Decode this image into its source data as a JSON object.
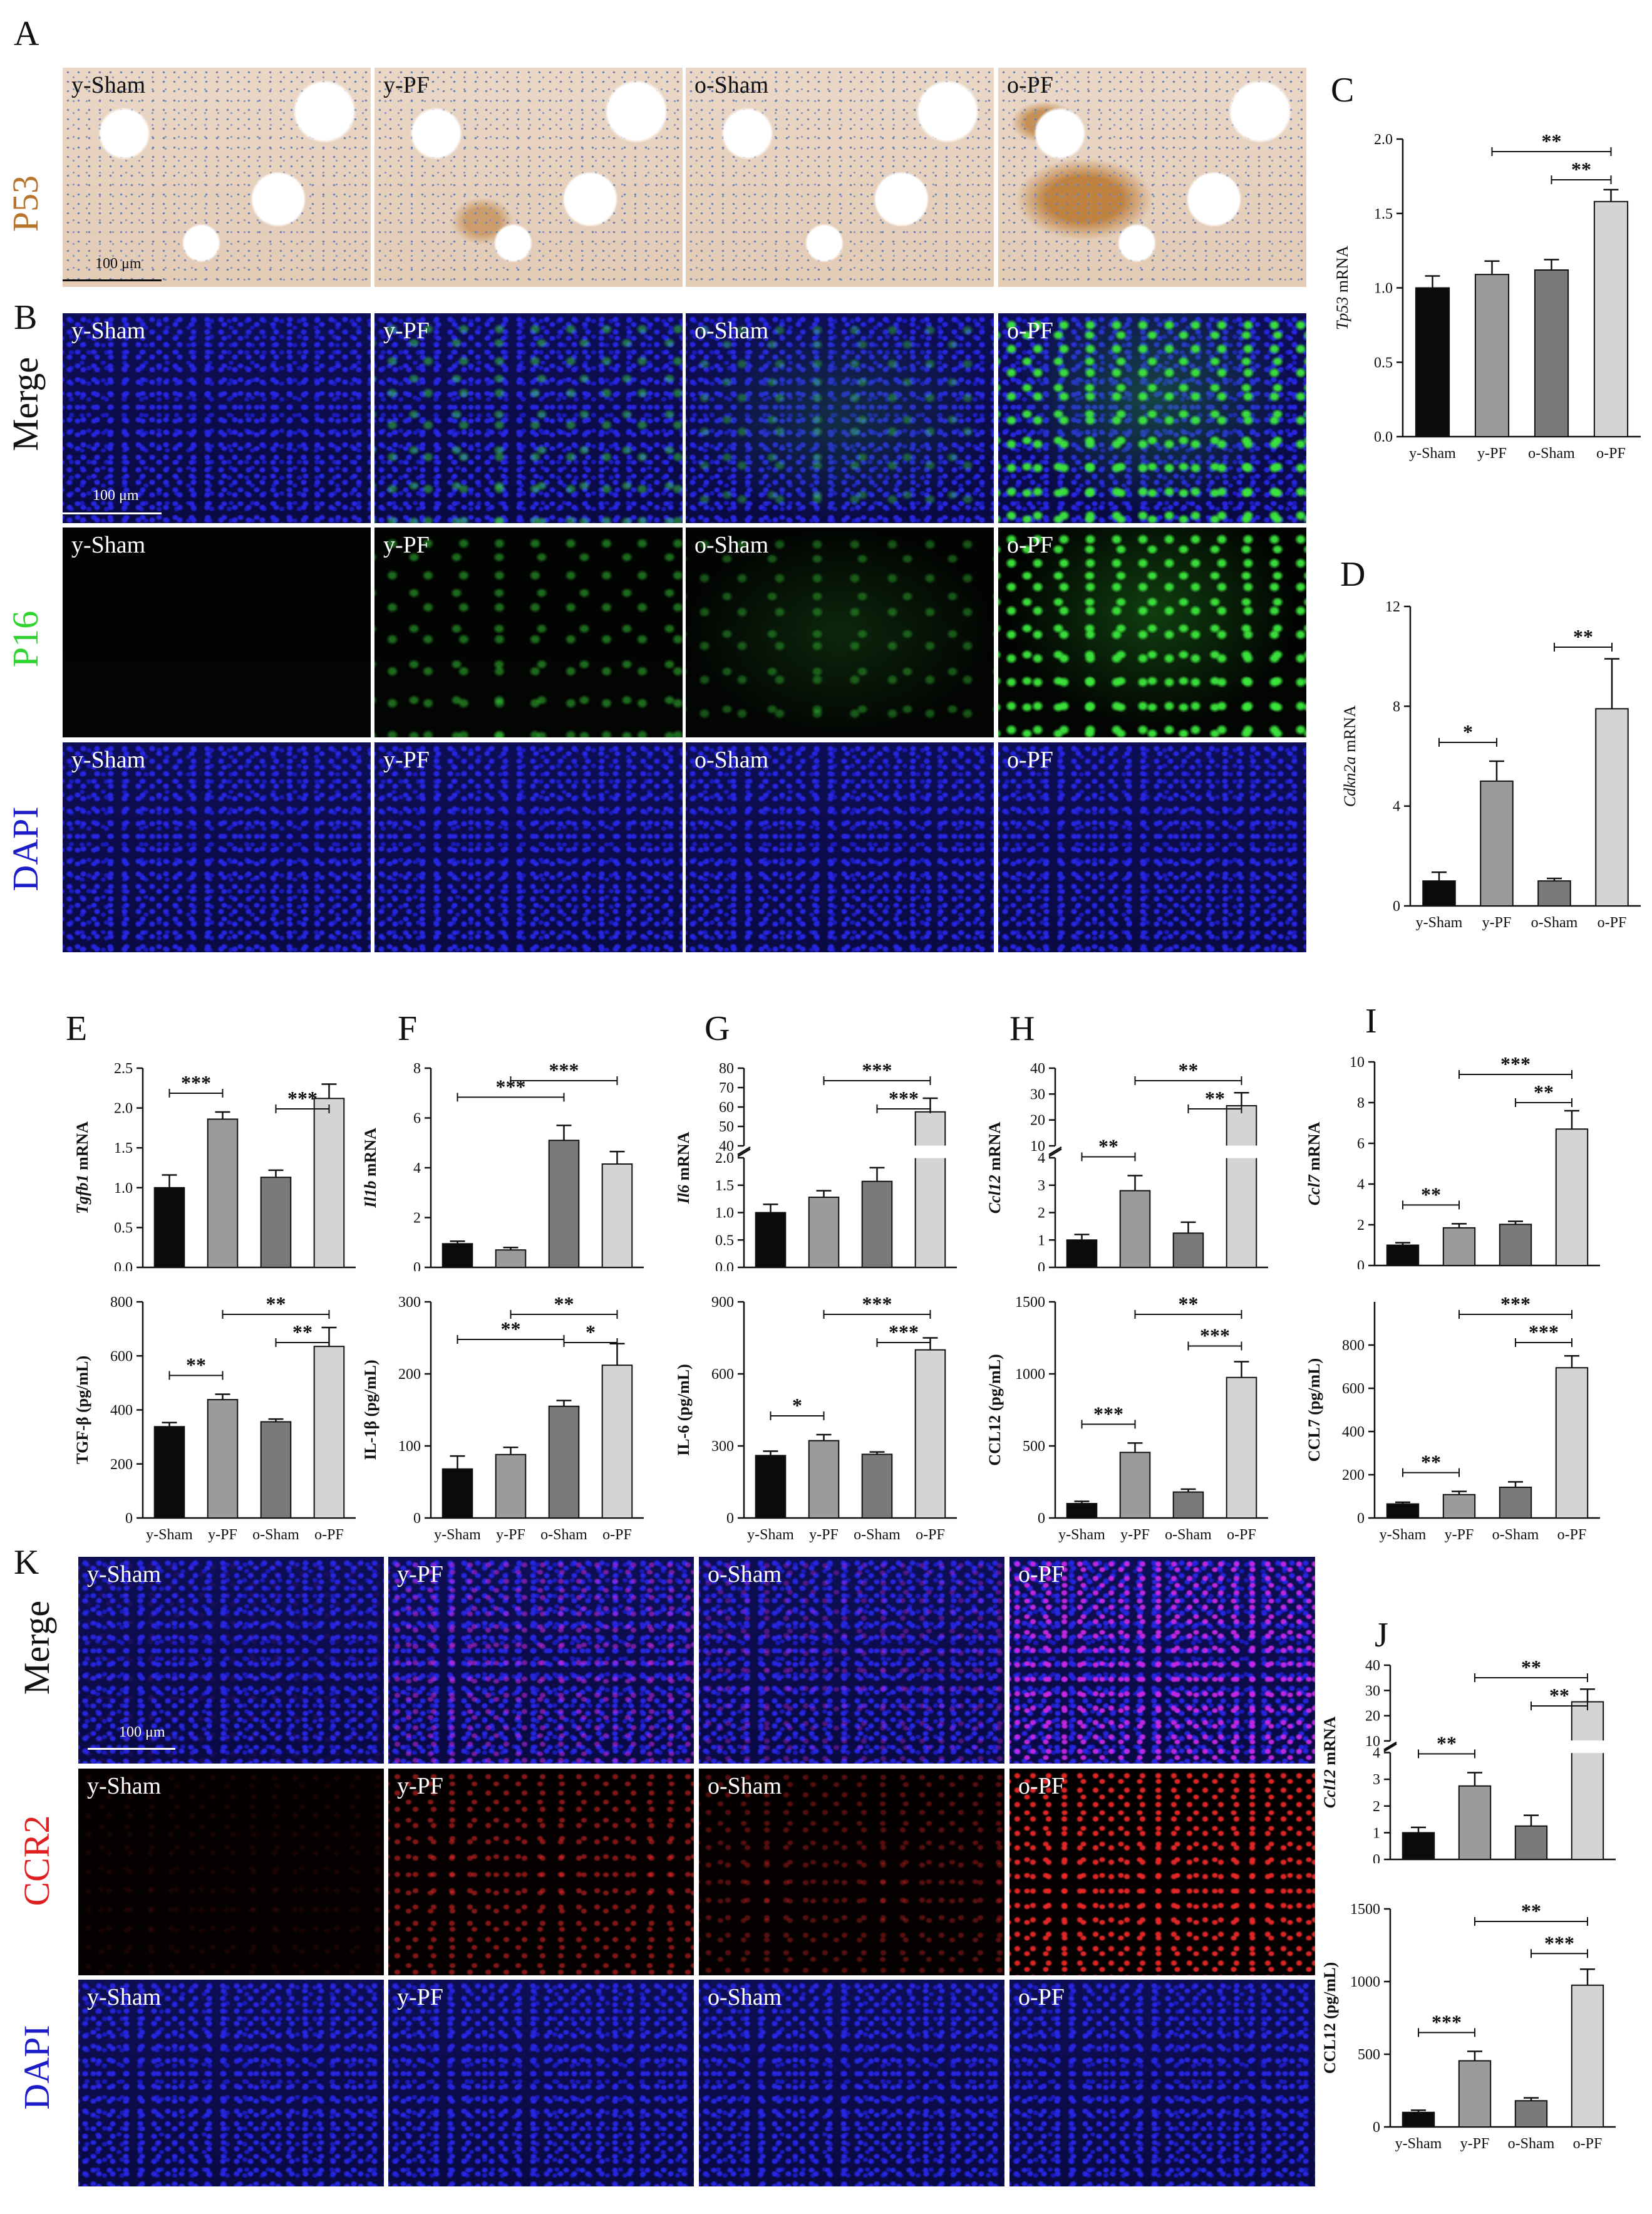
{
  "panels": {
    "A": "A",
    "B": "B",
    "C": "C",
    "D": "D",
    "E": "E",
    "F": "F",
    "G": "G",
    "H": "H",
    "I": "I",
    "J": "J",
    "K": "K"
  },
  "group_labels": [
    "y-Sham",
    "y-PF",
    "o-Sham",
    "o-PF"
  ],
  "stains": {
    "p53": "P53",
    "merge": "Merge",
    "p16": "P16",
    "dapi": "DAPI",
    "ccr2": "CCR2"
  },
  "scalebar": "100 μm",
  "colors": {
    "y_sham": "#0b0b0b",
    "y_pf": "#9b9b9b",
    "o_sham": "#7a7a7a",
    "o_pf": "#d4d4d4",
    "p16_green": "#2fd42f",
    "dapi_blue": "#1c1cc8",
    "ccr2_red": "#e02020",
    "ihc_brown": "#b8742b"
  },
  "chart_data": [
    {
      "id": "C",
      "type": "bar",
      "categories": [
        "y-Sham",
        "y-PF",
        "o-Sham",
        "o-PF"
      ],
      "values": [
        1.0,
        1.09,
        1.12,
        1.58
      ],
      "errors": [
        0.08,
        0.09,
        0.07,
        0.08
      ],
      "ylabel_it": "Tp53",
      "ylabel_rest": " mRNA",
      "ylim": [
        0,
        2.0
      ],
      "ticks": [
        0.0,
        0.5,
        1.0,
        1.5,
        2.0
      ],
      "tick_labels": [
        "0.0",
        "0.5",
        "1.0",
        "1.5",
        "2.0"
      ],
      "sig": [
        {
          "from": 1,
          "to": 3,
          "label": "**"
        },
        {
          "from": 2,
          "to": 3,
          "label": "**"
        }
      ]
    },
    {
      "id": "D",
      "type": "bar",
      "categories": [
        "y-Sham",
        "y-PF",
        "o-Sham",
        "o-PF"
      ],
      "values": [
        1.0,
        5.0,
        1.0,
        7.9
      ],
      "errors": [
        0.35,
        0.8,
        0.1,
        2.0
      ],
      "ylabel_it": "Cdkn2a",
      "ylabel_rest": " mRNA",
      "ylim": [
        0,
        12
      ],
      "ticks": [
        0,
        4,
        8,
        12
      ],
      "tick_labels": [
        "0",
        "4",
        "8",
        "12"
      ],
      "sig": [
        {
          "from": 0,
          "to": 1,
          "label": "*"
        },
        {
          "from": 2,
          "to": 3,
          "label": "**"
        }
      ]
    },
    {
      "id": "E1",
      "type": "bar",
      "categories": [
        "y-Sham",
        "y-PF",
        "o-Sham",
        "o-PF"
      ],
      "values": [
        1.0,
        1.86,
        1.13,
        2.12
      ],
      "errors": [
        0.16,
        0.09,
        0.09,
        0.18
      ],
      "ylabel_it": "Tgfb1",
      "ylabel_rest": " mRNA",
      "ylim": [
        0,
        2.5
      ],
      "ticks": [
        0.0,
        0.5,
        1.0,
        1.5,
        2.0,
        2.5
      ],
      "tick_labels": [
        "0.0",
        "0.5",
        "1.0",
        "1.5",
        "2.0",
        "2.5"
      ],
      "sig": [
        {
          "from": 0,
          "to": 1,
          "label": "***"
        },
        {
          "from": 2,
          "to": 3,
          "label": "***"
        }
      ]
    },
    {
      "id": "E2",
      "type": "bar",
      "categories": [
        "y-Sham",
        "y-PF",
        "o-Sham",
        "o-PF"
      ],
      "values": [
        338,
        438,
        356,
        635
      ],
      "errors": [
        15,
        20,
        10,
        70
      ],
      "ylabel_it": "",
      "ylabel_rest": "TGF-β (pg/mL)",
      "ylim": [
        0,
        800
      ],
      "ticks": [
        0,
        200,
        400,
        600,
        800
      ],
      "tick_labels": [
        "0",
        "200",
        "400",
        "600",
        "800"
      ],
      "sig": [
        {
          "from": 0,
          "to": 1,
          "label": "**"
        },
        {
          "from": 1,
          "to": 3,
          "label": "**"
        },
        {
          "from": 2,
          "to": 3,
          "label": "**"
        }
      ]
    },
    {
      "id": "F1",
      "type": "bar",
      "categories": [
        "y-Sham",
        "y-PF",
        "o-Sham",
        "o-PF"
      ],
      "values": [
        0.95,
        0.7,
        5.1,
        4.15
      ],
      "errors": [
        0.1,
        0.1,
        0.6,
        0.5
      ],
      "ylabel_it": "Il1b",
      "ylabel_rest": " mRNA",
      "ylim": [
        0,
        8
      ],
      "ticks": [
        0,
        2,
        4,
        6,
        8
      ],
      "tick_labels": [
        "0",
        "2",
        "4",
        "6",
        "8"
      ],
      "sig": [
        {
          "from": 0,
          "to": 2,
          "label": "***"
        },
        {
          "from": 1,
          "to": 3,
          "label": "***"
        }
      ]
    },
    {
      "id": "F2",
      "type": "bar",
      "categories": [
        "y-Sham",
        "y-PF",
        "o-Sham",
        "o-PF"
      ],
      "values": [
        68,
        88,
        155,
        212
      ],
      "errors": [
        18,
        10,
        8,
        30
      ],
      "ylabel_it": "",
      "ylabel_rest": "IL-1β (pg/mL)",
      "ylim": [
        0,
        300
      ],
      "ticks": [
        0,
        100,
        200,
        300
      ],
      "tick_labels": [
        "0",
        "100",
        "200",
        "300"
      ],
      "sig": [
        {
          "from": 0,
          "to": 2,
          "label": "**"
        },
        {
          "from": 1,
          "to": 3,
          "label": "**"
        },
        {
          "from": 2,
          "to": 3,
          "label": "*"
        }
      ]
    },
    {
      "id": "G1",
      "type": "broken-bar",
      "categories": [
        "y-Sham",
        "y-PF",
        "o-Sham",
        "o-PF"
      ],
      "values": [
        1.0,
        1.28,
        1.57,
        57.5
      ],
      "errors": [
        0.15,
        0.12,
        0.25,
        7
      ],
      "ylabel_it": "Il6",
      "ylabel_rest": " mRNA",
      "lower": {
        "ylim": [
          0,
          2.0
        ],
        "ticks": [
          0.0,
          0.5,
          1.0,
          1.5,
          2.0
        ],
        "tick_labels": [
          "0.0",
          "0.5",
          "1.0",
          "1.5",
          "2.0"
        ]
      },
      "upper": {
        "ylim": [
          40,
          80
        ],
        "ticks": [
          40,
          50,
          60,
          70,
          80
        ],
        "tick_labels": [
          "40",
          "50",
          "60",
          "70",
          "80"
        ]
      },
      "sig": [
        {
          "from": 1,
          "to": 3,
          "label": "***"
        },
        {
          "from": 2,
          "to": 3,
          "label": "***"
        }
      ]
    },
    {
      "id": "G2",
      "type": "bar",
      "categories": [
        "y-Sham",
        "y-PF",
        "o-Sham",
        "o-PF"
      ],
      "values": [
        260,
        322,
        265,
        700
      ],
      "errors": [
        18,
        25,
        10,
        50
      ],
      "ylabel_it": "",
      "ylabel_rest": "IL-6 (pg/mL)",
      "ylim": [
        0,
        900
      ],
      "ticks": [
        0,
        300,
        600,
        900
      ],
      "tick_labels": [
        "0",
        "300",
        "600",
        "900"
      ],
      "sig": [
        {
          "from": 0,
          "to": 1,
          "label": "*"
        },
        {
          "from": 1,
          "to": 3,
          "label": "***"
        },
        {
          "from": 2,
          "to": 3,
          "label": "***"
        }
      ]
    },
    {
      "id": "H1",
      "type": "broken-bar",
      "categories": [
        "y-Sham",
        "y-PF",
        "o-Sham",
        "o-PF"
      ],
      "values": [
        1.0,
        2.8,
        1.25,
        25.5
      ],
      "errors": [
        0.2,
        0.55,
        0.4,
        5
      ],
      "ylabel_it": "Ccl12",
      "ylabel_rest": " mRNA",
      "lower": {
        "ylim": [
          0,
          4
        ],
        "ticks": [
          0,
          1,
          2,
          3,
          4
        ],
        "tick_labels": [
          "0",
          "1",
          "2",
          "3",
          "4"
        ]
      },
      "upper": {
        "ylim": [
          10,
          40
        ],
        "ticks": [
          10,
          20,
          30,
          40
        ],
        "tick_labels": [
          "10",
          "20",
          "30",
          "40"
        ]
      },
      "sig": [
        {
          "from": 0,
          "to": 1,
          "label": "**"
        },
        {
          "from": 1,
          "to": 3,
          "label": "**"
        },
        {
          "from": 2,
          "to": 3,
          "label": "**"
        }
      ]
    },
    {
      "id": "H2",
      "type": "bar",
      "categories": [
        "y-Sham",
        "y-PF",
        "o-Sham",
        "o-PF"
      ],
      "values": [
        100,
        455,
        180,
        975
      ],
      "errors": [
        15,
        65,
        20,
        110
      ],
      "ylabel_it": "",
      "ylabel_rest": "CCL12 (pg/mL)",
      "ylim": [
        0,
        1500
      ],
      "ticks": [
        0,
        500,
        1000,
        1500
      ],
      "tick_labels": [
        "0",
        "500",
        "1000",
        "1500"
      ],
      "sig": [
        {
          "from": 0,
          "to": 1,
          "label": "***"
        },
        {
          "from": 1,
          "to": 3,
          "label": "**"
        },
        {
          "from": 2,
          "to": 3,
          "label": "***"
        }
      ]
    },
    {
      "id": "I1",
      "type": "bar",
      "categories": [
        "y-Sham",
        "y-PF",
        "o-Sham",
        "o-PF"
      ],
      "values": [
        1.0,
        1.85,
        2.02,
        6.7
      ],
      "errors": [
        0.12,
        0.2,
        0.15,
        0.9
      ],
      "ylabel_it": "Ccl7",
      "ylabel_rest": " mRNA",
      "ylim": [
        0,
        10
      ],
      "ticks": [
        0,
        2,
        4,
        6,
        8,
        10
      ],
      "tick_labels": [
        "0",
        "2",
        "4",
        "6",
        "8",
        "10"
      ],
      "sig": [
        {
          "from": 0,
          "to": 1,
          "label": "**"
        },
        {
          "from": 1,
          "to": 3,
          "label": "***"
        },
        {
          "from": 2,
          "to": 3,
          "label": "**"
        }
      ]
    },
    {
      "id": "I2",
      "type": "bar",
      "categories": [
        "y-Sham",
        "y-PF",
        "o-Sham",
        "o-PF"
      ],
      "values": [
        65,
        108,
        142,
        695
      ],
      "errors": [
        8,
        15,
        25,
        55
      ],
      "ylabel_it": "",
      "ylabel_rest": "CCL7 (pg/mL)",
      "ylim": [
        0,
        1000
      ],
      "ticks": [
        0,
        200,
        400,
        600,
        800
      ],
      "tick_labels": [
        "0",
        "200",
        "400",
        "600",
        "800"
      ],
      "sig": [
        {
          "from": 0,
          "to": 1,
          "label": "**"
        },
        {
          "from": 1,
          "to": 3,
          "label": "***"
        },
        {
          "from": 2,
          "to": 3,
          "label": "***"
        }
      ]
    },
    {
      "id": "J1",
      "type": "broken-bar",
      "categories": [
        "y-Sham",
        "y-PF",
        "o-Sham",
        "o-PF"
      ],
      "values": [
        1.0,
        2.75,
        1.25,
        25.5
      ],
      "errors": [
        0.2,
        0.5,
        0.4,
        5
      ],
      "ylabel_it": "Ccl12",
      "ylabel_rest": " mRNA",
      "lower": {
        "ylim": [
          0,
          4
        ],
        "ticks": [
          0,
          1,
          2,
          3,
          4
        ],
        "tick_labels": [
          "0",
          "1",
          "2",
          "3",
          "4"
        ]
      },
      "upper": {
        "ylim": [
          10,
          40
        ],
        "ticks": [
          10,
          20,
          30,
          40
        ],
        "tick_labels": [
          "10",
          "20",
          "30",
          "40"
        ]
      },
      "sig": [
        {
          "from": 0,
          "to": 1,
          "label": "**"
        },
        {
          "from": 1,
          "to": 3,
          "label": "**"
        },
        {
          "from": 2,
          "to": 3,
          "label": "**"
        }
      ]
    },
    {
      "id": "J2",
      "type": "bar",
      "categories": [
        "y-Sham",
        "y-PF",
        "o-Sham",
        "o-PF"
      ],
      "values": [
        100,
        455,
        180,
        975
      ],
      "errors": [
        15,
        65,
        20,
        110
      ],
      "ylabel_it": "",
      "ylabel_rest": "CCL12 (pg/mL)",
      "ylim": [
        0,
        1500
      ],
      "ticks": [
        0,
        500,
        1000,
        1500
      ],
      "tick_labels": [
        "0",
        "500",
        "1000",
        "1500"
      ],
      "sig": [
        {
          "from": 0,
          "to": 1,
          "label": "***"
        },
        {
          "from": 1,
          "to": 3,
          "label": "**"
        },
        {
          "from": 2,
          "to": 3,
          "label": "***"
        }
      ]
    }
  ]
}
